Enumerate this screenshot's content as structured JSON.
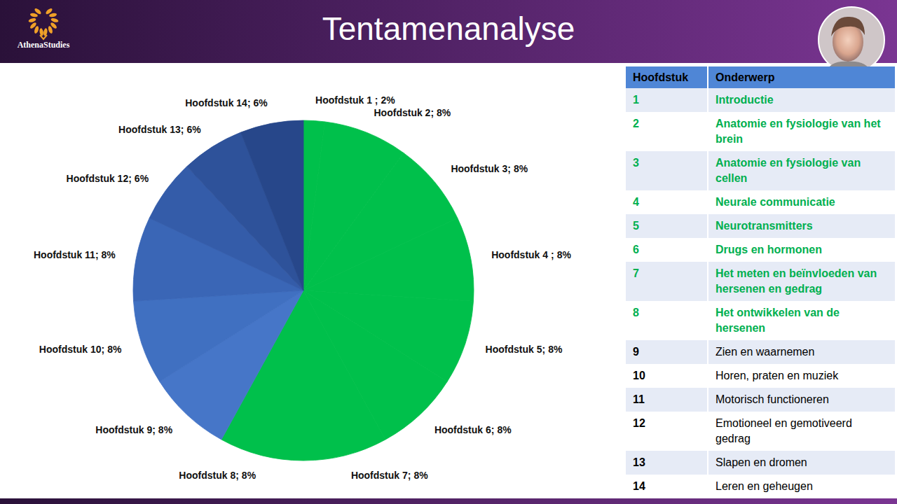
{
  "header": {
    "logo": "AthenaStudies",
    "title": "Tentamenanalyse"
  },
  "chart_data": {
    "type": "pie",
    "categories": [
      "Hoofdstuk 1 ;",
      "Hoofdstuk 2;",
      "Hoofdstuk 3;",
      "Hoofdstuk 4 ;",
      "Hoofdstuk 5;",
      "Hoofdstuk 6;",
      "Hoofdstuk 7;",
      "Hoofdstuk 8;",
      "Hoofdstuk 9;",
      "Hoofdstuk 10;",
      "Hoofdstuk 11;",
      "Hoofdstuk 12;",
      "Hoofdstuk 13;",
      "Hoofdstuk 14;"
    ],
    "values": [
      2,
      8,
      8,
      8,
      8,
      8,
      8,
      8,
      8,
      8,
      8,
      6,
      6,
      6
    ],
    "value_labels": [
      "2%",
      "8%",
      "8%",
      "8%",
      "8%",
      "8%",
      "8%",
      "8%",
      "8%",
      "8%",
      "8%",
      "6%",
      "6%",
      "6%"
    ],
    "colors": [
      "#00c04b",
      "#00c04b",
      "#00c04b",
      "#00c04b",
      "#00c04b",
      "#00c04b",
      "#00c04b",
      "#00c04b",
      "#4676c8",
      "#4070c1",
      "#3a66b6",
      "#345ca9",
      "#2e529a",
      "#27478a"
    ],
    "data_labels": true
  },
  "table": {
    "columns": [
      "Hoofdstuk",
      "Onderwerp"
    ],
    "rows": [
      [
        1,
        "Introductie"
      ],
      [
        2,
        "Anatomie en fysiologie van het brein"
      ],
      [
        3,
        "Anatomie en fysiologie van cellen"
      ],
      [
        4,
        "Neurale communicatie"
      ],
      [
        5,
        "Neurotransmitters"
      ],
      [
        6,
        "Drugs en hormonen"
      ],
      [
        7,
        "Het meten en beïnvloeden van hersenen en gedrag"
      ],
      [
        8,
        "Het ontwikkelen van de hersenen"
      ],
      [
        9,
        "Zien en waarnemen"
      ],
      [
        10,
        "Horen, praten en muziek"
      ],
      [
        11,
        "Motorisch functioneren"
      ],
      [
        12,
        "Emotioneel en gemotiveerd gedrag"
      ],
      [
        13,
        "Slapen en dromen"
      ],
      [
        14,
        "Leren en geheugen"
      ]
    ],
    "row_colors": [
      "#00b050",
      "#00b050",
      "#00b050",
      "#00b050",
      "#00b050",
      "#00b050",
      "#00b050",
      "#00b050",
      "#000000",
      "#000000",
      "#000000",
      "#000000",
      "#000000",
      "#000000"
    ]
  }
}
